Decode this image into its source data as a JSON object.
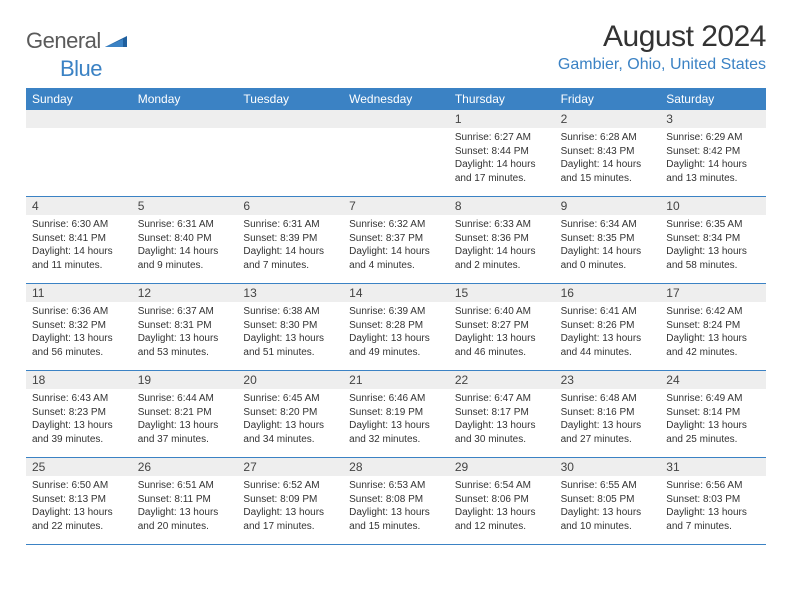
{
  "logo": {
    "general": "General",
    "blue": "Blue"
  },
  "title": "August 2024",
  "location": "Gambier, Ohio, United States",
  "header_bg": "#3b82c4",
  "weekdays": [
    "Sunday",
    "Monday",
    "Tuesday",
    "Wednesday",
    "Thursday",
    "Friday",
    "Saturday"
  ],
  "weeks": [
    [
      {
        "n": "",
        "sr": "",
        "ss": "",
        "d1": "",
        "d2": ""
      },
      {
        "n": "",
        "sr": "",
        "ss": "",
        "d1": "",
        "d2": ""
      },
      {
        "n": "",
        "sr": "",
        "ss": "",
        "d1": "",
        "d2": ""
      },
      {
        "n": "",
        "sr": "",
        "ss": "",
        "d1": "",
        "d2": ""
      },
      {
        "n": "1",
        "sr": "Sunrise: 6:27 AM",
        "ss": "Sunset: 8:44 PM",
        "d1": "Daylight: 14 hours",
        "d2": "and 17 minutes."
      },
      {
        "n": "2",
        "sr": "Sunrise: 6:28 AM",
        "ss": "Sunset: 8:43 PM",
        "d1": "Daylight: 14 hours",
        "d2": "and 15 minutes."
      },
      {
        "n": "3",
        "sr": "Sunrise: 6:29 AM",
        "ss": "Sunset: 8:42 PM",
        "d1": "Daylight: 14 hours",
        "d2": "and 13 minutes."
      }
    ],
    [
      {
        "n": "4",
        "sr": "Sunrise: 6:30 AM",
        "ss": "Sunset: 8:41 PM",
        "d1": "Daylight: 14 hours",
        "d2": "and 11 minutes."
      },
      {
        "n": "5",
        "sr": "Sunrise: 6:31 AM",
        "ss": "Sunset: 8:40 PM",
        "d1": "Daylight: 14 hours",
        "d2": "and 9 minutes."
      },
      {
        "n": "6",
        "sr": "Sunrise: 6:31 AM",
        "ss": "Sunset: 8:39 PM",
        "d1": "Daylight: 14 hours",
        "d2": "and 7 minutes."
      },
      {
        "n": "7",
        "sr": "Sunrise: 6:32 AM",
        "ss": "Sunset: 8:37 PM",
        "d1": "Daylight: 14 hours",
        "d2": "and 4 minutes."
      },
      {
        "n": "8",
        "sr": "Sunrise: 6:33 AM",
        "ss": "Sunset: 8:36 PM",
        "d1": "Daylight: 14 hours",
        "d2": "and 2 minutes."
      },
      {
        "n": "9",
        "sr": "Sunrise: 6:34 AM",
        "ss": "Sunset: 8:35 PM",
        "d1": "Daylight: 14 hours",
        "d2": "and 0 minutes."
      },
      {
        "n": "10",
        "sr": "Sunrise: 6:35 AM",
        "ss": "Sunset: 8:34 PM",
        "d1": "Daylight: 13 hours",
        "d2": "and 58 minutes."
      }
    ],
    [
      {
        "n": "11",
        "sr": "Sunrise: 6:36 AM",
        "ss": "Sunset: 8:32 PM",
        "d1": "Daylight: 13 hours",
        "d2": "and 56 minutes."
      },
      {
        "n": "12",
        "sr": "Sunrise: 6:37 AM",
        "ss": "Sunset: 8:31 PM",
        "d1": "Daylight: 13 hours",
        "d2": "and 53 minutes."
      },
      {
        "n": "13",
        "sr": "Sunrise: 6:38 AM",
        "ss": "Sunset: 8:30 PM",
        "d1": "Daylight: 13 hours",
        "d2": "and 51 minutes."
      },
      {
        "n": "14",
        "sr": "Sunrise: 6:39 AM",
        "ss": "Sunset: 8:28 PM",
        "d1": "Daylight: 13 hours",
        "d2": "and 49 minutes."
      },
      {
        "n": "15",
        "sr": "Sunrise: 6:40 AM",
        "ss": "Sunset: 8:27 PM",
        "d1": "Daylight: 13 hours",
        "d2": "and 46 minutes."
      },
      {
        "n": "16",
        "sr": "Sunrise: 6:41 AM",
        "ss": "Sunset: 8:26 PM",
        "d1": "Daylight: 13 hours",
        "d2": "and 44 minutes."
      },
      {
        "n": "17",
        "sr": "Sunrise: 6:42 AM",
        "ss": "Sunset: 8:24 PM",
        "d1": "Daylight: 13 hours",
        "d2": "and 42 minutes."
      }
    ],
    [
      {
        "n": "18",
        "sr": "Sunrise: 6:43 AM",
        "ss": "Sunset: 8:23 PM",
        "d1": "Daylight: 13 hours",
        "d2": "and 39 minutes."
      },
      {
        "n": "19",
        "sr": "Sunrise: 6:44 AM",
        "ss": "Sunset: 8:21 PM",
        "d1": "Daylight: 13 hours",
        "d2": "and 37 minutes."
      },
      {
        "n": "20",
        "sr": "Sunrise: 6:45 AM",
        "ss": "Sunset: 8:20 PM",
        "d1": "Daylight: 13 hours",
        "d2": "and 34 minutes."
      },
      {
        "n": "21",
        "sr": "Sunrise: 6:46 AM",
        "ss": "Sunset: 8:19 PM",
        "d1": "Daylight: 13 hours",
        "d2": "and 32 minutes."
      },
      {
        "n": "22",
        "sr": "Sunrise: 6:47 AM",
        "ss": "Sunset: 8:17 PM",
        "d1": "Daylight: 13 hours",
        "d2": "and 30 minutes."
      },
      {
        "n": "23",
        "sr": "Sunrise: 6:48 AM",
        "ss": "Sunset: 8:16 PM",
        "d1": "Daylight: 13 hours",
        "d2": "and 27 minutes."
      },
      {
        "n": "24",
        "sr": "Sunrise: 6:49 AM",
        "ss": "Sunset: 8:14 PM",
        "d1": "Daylight: 13 hours",
        "d2": "and 25 minutes."
      }
    ],
    [
      {
        "n": "25",
        "sr": "Sunrise: 6:50 AM",
        "ss": "Sunset: 8:13 PM",
        "d1": "Daylight: 13 hours",
        "d2": "and 22 minutes."
      },
      {
        "n": "26",
        "sr": "Sunrise: 6:51 AM",
        "ss": "Sunset: 8:11 PM",
        "d1": "Daylight: 13 hours",
        "d2": "and 20 minutes."
      },
      {
        "n": "27",
        "sr": "Sunrise: 6:52 AM",
        "ss": "Sunset: 8:09 PM",
        "d1": "Daylight: 13 hours",
        "d2": "and 17 minutes."
      },
      {
        "n": "28",
        "sr": "Sunrise: 6:53 AM",
        "ss": "Sunset: 8:08 PM",
        "d1": "Daylight: 13 hours",
        "d2": "and 15 minutes."
      },
      {
        "n": "29",
        "sr": "Sunrise: 6:54 AM",
        "ss": "Sunset: 8:06 PM",
        "d1": "Daylight: 13 hours",
        "d2": "and 12 minutes."
      },
      {
        "n": "30",
        "sr": "Sunrise: 6:55 AM",
        "ss": "Sunset: 8:05 PM",
        "d1": "Daylight: 13 hours",
        "d2": "and 10 minutes."
      },
      {
        "n": "31",
        "sr": "Sunrise: 6:56 AM",
        "ss": "Sunset: 8:03 PM",
        "d1": "Daylight: 13 hours",
        "d2": "and 7 minutes."
      }
    ]
  ]
}
